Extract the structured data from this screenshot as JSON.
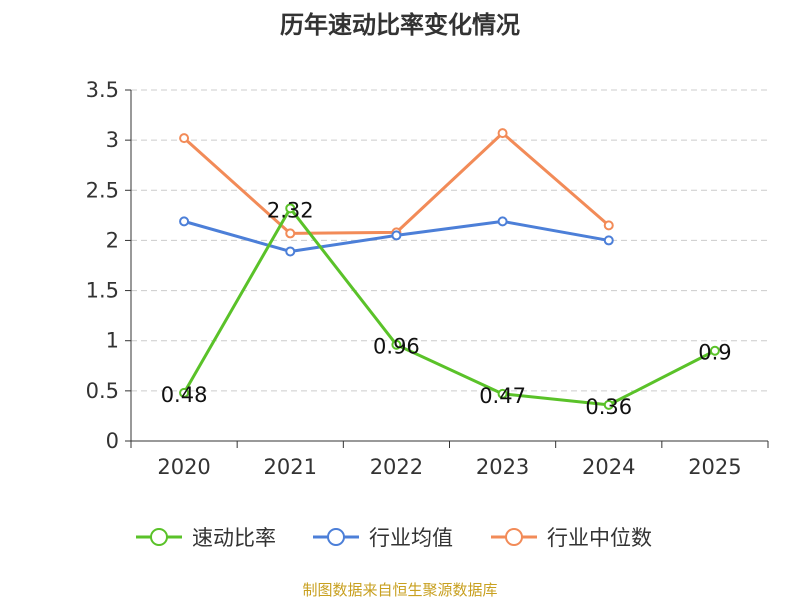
{
  "chart_data": {
    "type": "line",
    "title": "历年速动比率变化情况",
    "categories": [
      "2020",
      "2021",
      "2022",
      "2023",
      "2024",
      "2025"
    ],
    "y_ticks": [
      "0",
      "0.5",
      "1",
      "1.5",
      "2",
      "2.5",
      "3",
      "3.5"
    ],
    "ylim": [
      0,
      3.5
    ],
    "grid": true,
    "legend_position": "bottom",
    "series": [
      {
        "name": "速动比率",
        "color": "#5ac229",
        "values": [
          0.48,
          2.32,
          0.96,
          0.47,
          0.36,
          0.9
        ],
        "data_labels": [
          "0.48",
          "2.32",
          "0.96",
          "0.47",
          "0.36",
          "0.9"
        ]
      },
      {
        "name": "行业均值",
        "color": "#4c7fd8",
        "values": [
          2.19,
          1.89,
          2.05,
          2.19,
          2.0,
          null
        ]
      },
      {
        "name": "行业中位数",
        "color": "#f28b58",
        "values": [
          3.02,
          2.07,
          2.08,
          3.07,
          2.15,
          null
        ]
      }
    ]
  },
  "footer": {
    "source": "制图数据来自恒生聚源数据库"
  }
}
